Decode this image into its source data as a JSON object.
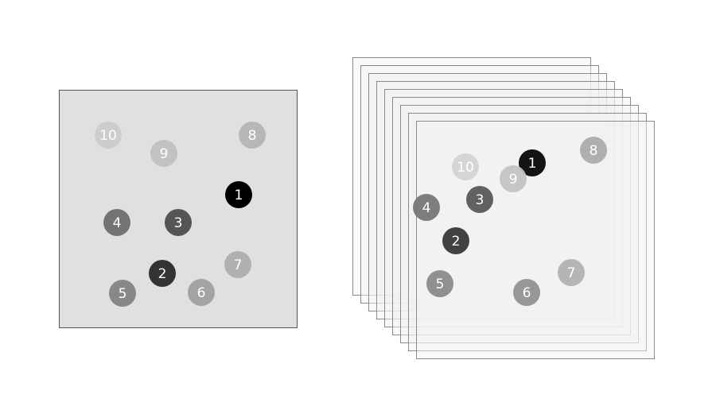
{
  "left_panel": {
    "fill": "#e0e0e0",
    "stroke": "#555555",
    "dots": [
      {
        "label": "1",
        "color": "#000000",
        "text_color": "#ffffff"
      },
      {
        "label": "2",
        "color": "#333333",
        "text_color": "#ffffff"
      },
      {
        "label": "3",
        "color": "#555555",
        "text_color": "#ffffff"
      },
      {
        "label": "4",
        "color": "#737373",
        "text_color": "#ffffff"
      },
      {
        "label": "5",
        "color": "#888888",
        "text_color": "#ffffff"
      },
      {
        "label": "6",
        "color": "#a3a3a3",
        "text_color": "#ffffff"
      },
      {
        "label": "7",
        "color": "#b0b0b0",
        "text_color": "#ffffff"
      },
      {
        "label": "8",
        "color": "#b7b7b7",
        "text_color": "#ffffff"
      },
      {
        "label": "9",
        "color": "#c2c2c2",
        "text_color": "#ffffff"
      },
      {
        "label": "10",
        "color": "#cdcdcd",
        "text_color": "#ffffff"
      }
    ]
  },
  "right_stack": {
    "layer_count": 9,
    "layer_fill": "#f2f2f2",
    "layer_stroke": "#8a8a8a",
    "dots": [
      {
        "label": "1",
        "color": "#000000",
        "text_color": "#ffffff"
      },
      {
        "label": "2",
        "color": "#333333",
        "text_color": "#ffffff"
      },
      {
        "label": "3",
        "color": "#555555",
        "text_color": "#ffffff"
      },
      {
        "label": "4",
        "color": "#737373",
        "text_color": "#ffffff"
      },
      {
        "label": "5",
        "color": "#888888",
        "text_color": "#ffffff"
      },
      {
        "label": "6",
        "color": "#8f8f8f",
        "text_color": "#ffffff"
      },
      {
        "label": "7",
        "color": "#b0b0b0",
        "text_color": "#ffffff"
      },
      {
        "label": "8",
        "color": "#a9a9a9",
        "text_color": "#ffffff"
      },
      {
        "label": "9",
        "color": "#c2c2c2",
        "text_color": "#ffffff"
      },
      {
        "label": "10",
        "color": "#d2d2d2",
        "text_color": "#ffffff"
      }
    ]
  }
}
